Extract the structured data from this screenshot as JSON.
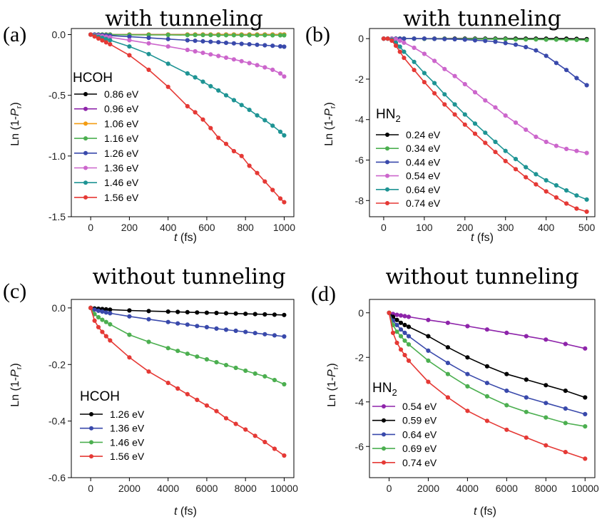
{
  "panels": [
    {
      "label": "(a)",
      "title": "with tunneling",
      "xlabel": "t (fs)",
      "ylabel": "Ln (1-Pr)",
      "legend_title": "HCOH"
    },
    {
      "label": "(b)",
      "title": "with tunneling",
      "xlabel": "t (fs)",
      "ylabel": "Ln (1-Pr)",
      "legend_title": "HN2"
    },
    {
      "label": "(c)",
      "title": "without tunneling",
      "xlabel": "t (fs)",
      "ylabel": "Ln (1-Pr)",
      "legend_title": "HCOH"
    },
    {
      "label": "(d)",
      "title": "without tunneling",
      "xlabel": "t (fs)",
      "ylabel": "Ln (1-Pr)",
      "legend_title": "HN2"
    }
  ],
  "chart_data": [
    {
      "type": "line",
      "title": "with tunneling",
      "xlabel": "t (fs)",
      "ylabel": "Ln (1-Pr)",
      "xlim": [
        -100,
        1050
      ],
      "ylim": [
        -1.5,
        0.05
      ],
      "xticks": [
        0,
        200,
        400,
        600,
        800,
        1000
      ],
      "yticks": [
        0.0,
        -0.5,
        -1.0,
        -1.5
      ],
      "ytick_labels": [
        "0.0",
        "-0.5",
        "-1.0",
        "-1.5"
      ],
      "legend_title": "HCOH",
      "x": [
        0,
        20,
        40,
        60,
        80,
        100,
        200,
        300,
        400,
        500,
        540,
        580,
        620,
        660,
        700,
        740,
        780,
        820,
        860,
        900,
        940,
        980,
        1000
      ],
      "series": [
        {
          "name": "0.86 eV",
          "color": "#000000",
          "values": [
            0,
            0,
            0,
            0,
            0,
            0,
            0,
            0,
            0,
            0,
            0,
            0,
            0,
            0,
            0,
            0,
            0,
            0,
            0,
            0,
            0,
            0,
            0
          ]
        },
        {
          "name": "0.96 eV",
          "color": "#8e24aa",
          "values": [
            0,
            0,
            0,
            0,
            0,
            0,
            0,
            0,
            0,
            0,
            0,
            0,
            0,
            0,
            0,
            0,
            0,
            0,
            0,
            0,
            0,
            0,
            0
          ]
        },
        {
          "name": "1.06 eV",
          "color": "#f39c12",
          "values": [
            0,
            0,
            0,
            0,
            0,
            0,
            0,
            0,
            0,
            0,
            0,
            0,
            0,
            0,
            0,
            0,
            0,
            0,
            0,
            0,
            0,
            0,
            0
          ]
        },
        {
          "name": "1.16 eV",
          "color": "#4caf50",
          "values": [
            0,
            0,
            0,
            0,
            0,
            0,
            -0.002,
            -0.003,
            -0.003,
            -0.004,
            -0.004,
            -0.004,
            -0.004,
            -0.005,
            -0.005,
            -0.005,
            -0.005,
            -0.005,
            -0.005,
            -0.005,
            -0.006,
            -0.006,
            -0.006
          ]
        },
        {
          "name": "1.26 eV",
          "color": "#3949ab",
          "values": [
            0,
            0,
            -0.002,
            -0.004,
            -0.006,
            -0.008,
            -0.017,
            -0.027,
            -0.037,
            -0.047,
            -0.051,
            -0.055,
            -0.059,
            -0.063,
            -0.068,
            -0.072,
            -0.076,
            -0.08,
            -0.084,
            -0.088,
            -0.092,
            -0.097,
            -0.1
          ]
        },
        {
          "name": "1.36 eV",
          "color": "#cc66cc",
          "values": [
            0,
            -0.004,
            -0.009,
            -0.013,
            -0.018,
            -0.022,
            -0.046,
            -0.072,
            -0.098,
            -0.126,
            -0.138,
            -0.15,
            -0.163,
            -0.176,
            -0.19,
            -0.204,
            -0.219,
            -0.235,
            -0.252,
            -0.27,
            -0.29,
            -0.32,
            -0.345
          ]
        },
        {
          "name": "1.46 eV",
          "color": "#1e9494",
          "values": [
            0,
            -0.009,
            -0.018,
            -0.027,
            -0.037,
            -0.046,
            -0.098,
            -0.16,
            -0.24,
            -0.32,
            -0.352,
            -0.388,
            -0.425,
            -0.46,
            -0.5,
            -0.54,
            -0.58,
            -0.62,
            -0.665,
            -0.705,
            -0.75,
            -0.8,
            -0.83
          ]
        },
        {
          "name": "1.56 eV",
          "color": "#e53935",
          "values": [
            0,
            -0.016,
            -0.032,
            -0.048,
            -0.064,
            -0.08,
            -0.17,
            -0.29,
            -0.43,
            -0.59,
            -0.64,
            -0.7,
            -0.77,
            -0.85,
            -0.9,
            -0.96,
            -1.0,
            -1.08,
            -1.14,
            -1.21,
            -1.28,
            -1.35,
            -1.38
          ]
        }
      ]
    },
    {
      "type": "line",
      "title": "with tunneling",
      "xlabel": "t (fs)",
      "ylabel": "Ln (1-Pr)",
      "xlim": [
        -35,
        520
      ],
      "ylim": [
        -8.8,
        0.5
      ],
      "xticks": [
        0,
        100,
        200,
        300,
        400,
        500
      ],
      "yticks": [
        0,
        -2,
        -4,
        -6,
        -8
      ],
      "ytick_labels": [
        "0",
        "-2",
        "-4",
        "-6",
        "-8"
      ],
      "legend_title": "HN2",
      "x": [
        0,
        10,
        20,
        30,
        40,
        50,
        75,
        100,
        125,
        150,
        175,
        200,
        225,
        250,
        275,
        300,
        325,
        350,
        375,
        400,
        425,
        450,
        475,
        500
      ],
      "series": [
        {
          "name": "0.24 eV",
          "color": "#000000",
          "values": [
            0,
            0,
            0,
            0,
            0,
            0,
            0,
            0,
            0,
            0,
            0,
            0,
            0,
            0,
            0,
            0,
            0,
            0,
            0,
            0,
            0,
            0,
            -0.01,
            -0.02
          ]
        },
        {
          "name": "0.34 eV",
          "color": "#4caf50",
          "values": [
            0,
            0,
            0,
            0,
            0,
            0,
            0,
            -0.01,
            -0.01,
            -0.01,
            -0.02,
            -0.02,
            -0.02,
            -0.03,
            -0.03,
            -0.03,
            -0.04,
            -0.04,
            -0.04,
            -0.05,
            -0.05,
            -0.06,
            -0.06,
            -0.07
          ]
        },
        {
          "name": "0.44 eV",
          "color": "#3949ab",
          "values": [
            0,
            0,
            0,
            0,
            0,
            0,
            0,
            0,
            -0.01,
            -0.02,
            -0.03,
            -0.05,
            -0.08,
            -0.11,
            -0.15,
            -0.22,
            -0.3,
            -0.42,
            -0.58,
            -0.85,
            -1.2,
            -1.55,
            -1.95,
            -2.3
          ]
        },
        {
          "name": "0.54 eV",
          "color": "#cc66cc",
          "values": [
            0,
            0,
            0,
            -0.03,
            -0.1,
            -0.2,
            -0.45,
            -0.75,
            -1.1,
            -1.5,
            -1.85,
            -2.25,
            -2.65,
            -3.05,
            -3.4,
            -3.8,
            -4.15,
            -4.5,
            -4.85,
            -5.1,
            -5.3,
            -5.45,
            -5.55,
            -5.65
          ]
        },
        {
          "name": "0.64 eV",
          "color": "#1e9494",
          "values": [
            0,
            0,
            -0.05,
            -0.2,
            -0.4,
            -0.65,
            -1.15,
            -1.7,
            -2.2,
            -2.75,
            -3.25,
            -3.75,
            -4.2,
            -4.65,
            -5.1,
            -5.55,
            -5.95,
            -6.35,
            -6.7,
            -7.0,
            -7.25,
            -7.5,
            -7.75,
            -7.95
          ]
        },
        {
          "name": "0.74 eV",
          "color": "#e53935",
          "values": [
            0,
            0,
            -0.1,
            -0.35,
            -0.65,
            -0.95,
            -1.55,
            -2.15,
            -2.7,
            -3.25,
            -3.75,
            -4.25,
            -4.7,
            -5.15,
            -5.6,
            -6.05,
            -6.45,
            -6.85,
            -7.2,
            -7.55,
            -7.85,
            -8.15,
            -8.4,
            -8.55
          ]
        }
      ]
    },
    {
      "type": "line",
      "title": "without tunneling",
      "xlabel": "t (fs)",
      "ylabel": "Ln (1-Pr)",
      "xlim": [
        -1000,
        10500
      ],
      "ylim": [
        -0.6,
        0.03
      ],
      "xticks": [
        0,
        2000,
        4000,
        6000,
        8000,
        10000
      ],
      "yticks": [
        0.0,
        -0.2,
        -0.4,
        -0.6
      ],
      "ytick_labels": [
        "0.0",
        "-0.2",
        "-0.4",
        "-0.6"
      ],
      "legend_title": "HCOH",
      "x": [
        0,
        200,
        400,
        600,
        800,
        1000,
        2000,
        3000,
        4000,
        4500,
        5000,
        5500,
        6000,
        6500,
        7000,
        7500,
        8000,
        8500,
        9000,
        9500,
        10000
      ],
      "series": [
        {
          "name": "1.26 eV",
          "color": "#000000",
          "values": [
            0,
            -0.002,
            -0.003,
            -0.004,
            -0.005,
            -0.006,
            -0.009,
            -0.011,
            -0.013,
            -0.014,
            -0.015,
            -0.016,
            -0.017,
            -0.018,
            -0.019,
            -0.02,
            -0.021,
            -0.022,
            -0.023,
            -0.024,
            -0.025
          ]
        },
        {
          "name": "1.36 eV",
          "color": "#3949ab",
          "values": [
            0,
            -0.006,
            -0.01,
            -0.013,
            -0.016,
            -0.019,
            -0.03,
            -0.04,
            -0.05,
            -0.055,
            -0.059,
            -0.064,
            -0.068,
            -0.073,
            -0.077,
            -0.081,
            -0.085,
            -0.089,
            -0.093,
            -0.097,
            -0.101
          ]
        },
        {
          "name": "1.46 eV",
          "color": "#4caf50",
          "values": [
            0,
            -0.022,
            -0.033,
            -0.042,
            -0.05,
            -0.058,
            -0.095,
            -0.12,
            -0.142,
            -0.152,
            -0.162,
            -0.172,
            -0.182,
            -0.192,
            -0.202,
            -0.212,
            -0.222,
            -0.232,
            -0.242,
            -0.255,
            -0.27
          ]
        },
        {
          "name": "1.56 eV",
          "color": "#e53935",
          "values": [
            0,
            -0.045,
            -0.068,
            -0.085,
            -0.1,
            -0.115,
            -0.175,
            -0.225,
            -0.265,
            -0.285,
            -0.305,
            -0.325,
            -0.345,
            -0.365,
            -0.39,
            -0.41,
            -0.43,
            -0.452,
            -0.474,
            -0.498,
            -0.522
          ]
        }
      ]
    },
    {
      "type": "line",
      "title": "without tunneling",
      "xlabel": "t (fs)",
      "ylabel": "Ln (1-Pr)",
      "xlim": [
        -1000,
        10500
      ],
      "ylim": [
        -7.4,
        0.6
      ],
      "xticks": [
        0,
        2000,
        4000,
        6000,
        8000,
        10000
      ],
      "yticks": [
        0,
        -2,
        -4,
        -6
      ],
      "ytick_labels": [
        "0",
        "-2",
        "-4",
        "-6"
      ],
      "legend_title": "HN2",
      "x": [
        0,
        200,
        400,
        600,
        800,
        1000,
        2000,
        3000,
        4000,
        5000,
        6000,
        7000,
        8000,
        9000,
        10000
      ],
      "series": [
        {
          "name": "0.54 eV",
          "color": "#8e24aa",
          "values": [
            0,
            -0.05,
            -0.09,
            -0.12,
            -0.15,
            -0.18,
            -0.32,
            -0.45,
            -0.6,
            -0.75,
            -0.9,
            -1.05,
            -1.2,
            -1.4,
            -1.6
          ]
        },
        {
          "name": "0.59 eV",
          "color": "#000000",
          "values": [
            0,
            -0.18,
            -0.32,
            -0.45,
            -0.55,
            -0.63,
            -1.05,
            -1.55,
            -2.0,
            -2.4,
            -2.75,
            -3.0,
            -3.25,
            -3.5,
            -3.8
          ]
        },
        {
          "name": "0.64 eV",
          "color": "#3949ab",
          "values": [
            0,
            -0.35,
            -0.55,
            -0.75,
            -0.9,
            -1.05,
            -1.7,
            -2.25,
            -2.75,
            -3.15,
            -3.5,
            -3.8,
            -4.05,
            -4.3,
            -4.55
          ]
        },
        {
          "name": "0.69 eV",
          "color": "#4caf50",
          "values": [
            0,
            -0.55,
            -0.85,
            -1.05,
            -1.25,
            -1.42,
            -2.15,
            -2.75,
            -3.3,
            -3.75,
            -4.15,
            -4.45,
            -4.7,
            -4.95,
            -5.1
          ]
        },
        {
          "name": "0.74 eV",
          "color": "#e53935",
          "values": [
            0,
            -0.9,
            -1.35,
            -1.65,
            -1.9,
            -2.15,
            -3.1,
            -3.8,
            -4.4,
            -4.85,
            -5.25,
            -5.6,
            -5.95,
            -6.25,
            -6.55
          ]
        }
      ]
    }
  ]
}
